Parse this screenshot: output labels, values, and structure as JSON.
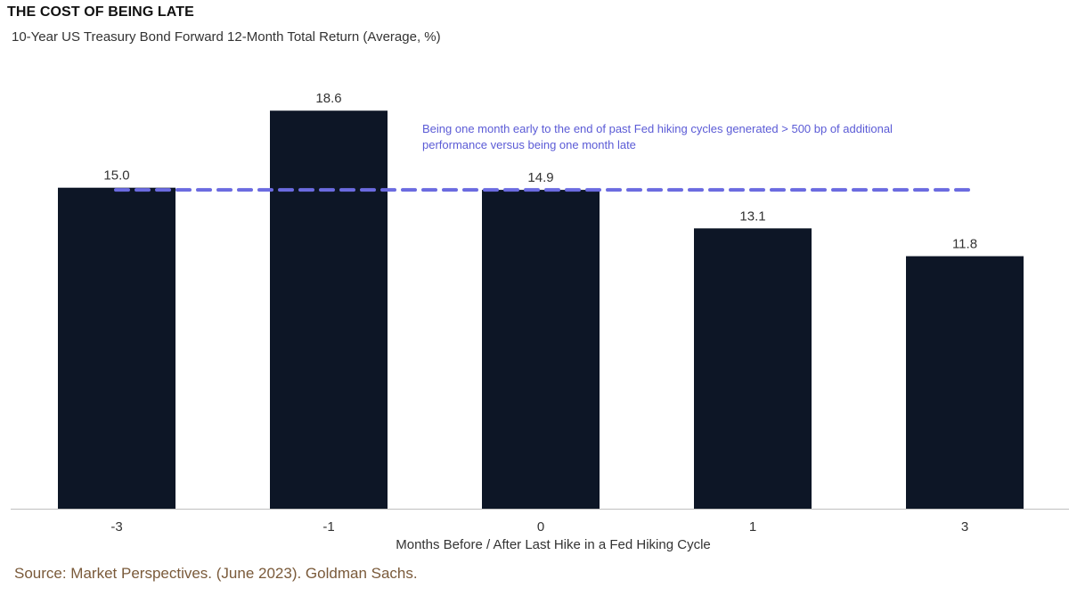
{
  "chart_data": {
    "type": "bar",
    "title": "THE COST OF BEING LATE",
    "subtitle": "10-Year US Treasury Bond Forward 12-Month Total Return (Average, %)",
    "categories": [
      "-3",
      "-1",
      "0",
      "1",
      "3"
    ],
    "values": [
      15.0,
      18.6,
      14.9,
      13.1,
      11.8
    ],
    "value_labels": [
      "15.0",
      "18.6",
      "14.9",
      "13.1",
      "11.8"
    ],
    "xlabel": "Months Before / After Last Hike in a Fed Hiking Cycle",
    "ylabel": "",
    "ylim": [
      0,
      20
    ],
    "grid": false,
    "reference_line": {
      "value": 14.9,
      "style": "dashed",
      "color": "#6b6be0"
    },
    "annotation_lines": [
      "Being one month early to the end of past Fed hiking cycles generated > 500 bp of additional",
      "performance versus being one month late"
    ],
    "bar_color": "#0d1626"
  },
  "source": "Source: Market Perspectives. (June 2023). Goldman Sachs."
}
